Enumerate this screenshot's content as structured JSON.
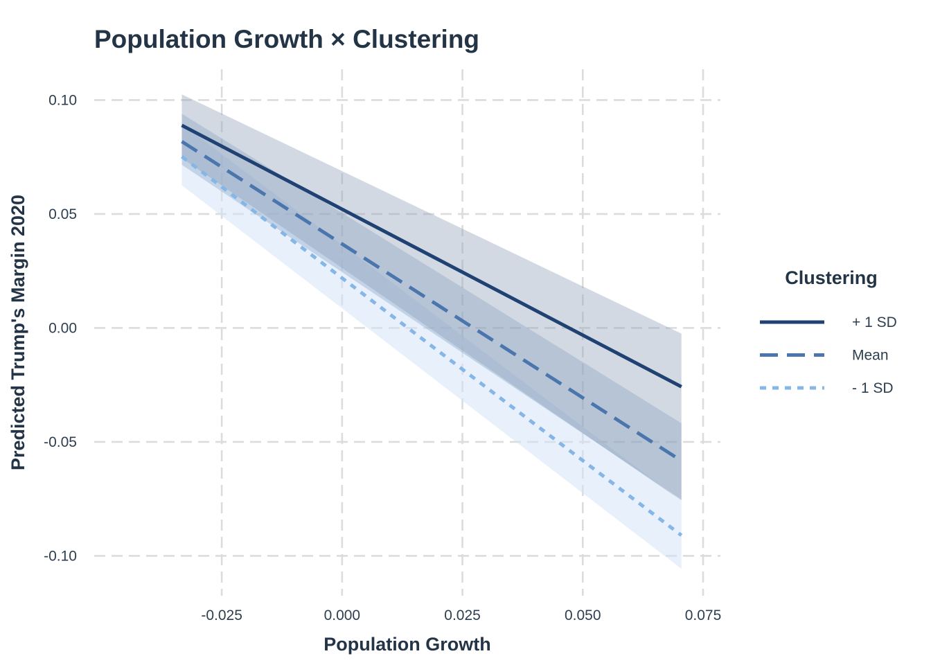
{
  "chart_data": {
    "type": "line",
    "title": "Population Growth × Clustering",
    "xlabel": "Population Growth",
    "ylabel": "Predicted Trump's Margin 2020",
    "xlim": [
      -0.0515,
      0.0786
    ],
    "ylim": [
      -0.1175,
      0.1135
    ],
    "x_ticks": [
      "-0.025",
      "0.000",
      "0.025",
      "0.050",
      "0.075"
    ],
    "x_tick_values": [
      -0.025,
      0.0,
      0.025,
      0.05,
      0.075
    ],
    "y_ticks": [
      "0.10",
      "0.05",
      "0.00",
      "-0.05",
      "-0.10"
    ],
    "y_tick_values": [
      0.1,
      0.05,
      0.0,
      -0.05,
      -0.1
    ],
    "grid": true,
    "legend_position": "right",
    "legend_title": "Clustering",
    "x": [
      -0.0333,
      0.0705
    ],
    "series": [
      {
        "name": "+ 1 SD",
        "line_style": "solid",
        "color": "#1f4273",
        "values": [
          0.0889,
          -0.0258
        ],
        "lower": [
          0.0745,
          -0.0758
        ],
        "upper": [
          0.1025,
          -0.0025
        ],
        "band_color": "#8fa1b8",
        "band_opacity": 0.4
      },
      {
        "name": "Mean",
        "line_style": "dashed",
        "color": "#4a76ad",
        "values": [
          0.0818,
          -0.0583
        ],
        "lower": [
          0.0716,
          -0.0753
        ],
        "upper": [
          0.094,
          -0.0418
        ],
        "band_color": "#7f9dc4",
        "band_opacity": 0.35
      },
      {
        "name": "- 1 SD",
        "line_style": "dotted",
        "color": "#86b6e6",
        "values": [
          0.0752,
          -0.091
        ],
        "lower": [
          0.0626,
          -0.1057
        ],
        "upper": [
          0.0896,
          -0.076
        ],
        "band_color": "#cfe2f7",
        "band_opacity": 0.5
      }
    ]
  }
}
